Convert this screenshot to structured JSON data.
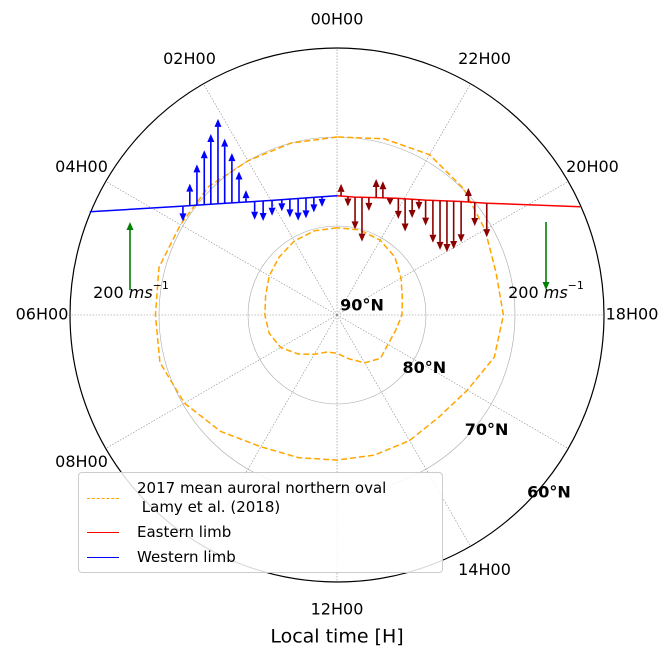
{
  "chart_data": {
    "type": "polar",
    "xlabel": "Local time [H]",
    "xlim": [
      0,
      24
    ],
    "xticks": [
      {
        "value": 0,
        "label": "00H00"
      },
      {
        "value": 2,
        "label": "02H00"
      },
      {
        "value": 4,
        "label": "04H00"
      },
      {
        "value": 6,
        "label": "06H00"
      },
      {
        "value": 8,
        "label": "08H00"
      },
      {
        "value": 10,
        "label": null
      },
      {
        "value": 12,
        "label": "12H00"
      },
      {
        "value": 14,
        "label": "14H00"
      },
      {
        "value": 16,
        "label": null
      },
      {
        "value": 18,
        "label": "18H00"
      },
      {
        "value": 20,
        "label": "20H00"
      },
      {
        "value": 22,
        "label": "22H00"
      }
    ],
    "ylim": [
      90,
      60
    ],
    "yticks": [
      {
        "value": 90,
        "label": "90°N"
      },
      {
        "value": 80,
        "label": "80°N"
      },
      {
        "value": 70,
        "label": "70°N"
      },
      {
        "value": 60,
        "label": "60°N"
      }
    ],
    "grid": true,
    "legend": "lower left",
    "reference": {
      "value": 200,
      "unit": "ms",
      "exponent": "−1",
      "color": "#008000"
    },
    "series": [
      {
        "name": "2017 mean auroral northern oval\n Lamy et al. (2018)",
        "color": "#ffa500",
        "style": "dashed",
        "x": [
          0,
          1,
          2,
          3,
          4,
          5,
          6,
          7,
          8,
          9,
          10,
          11,
          12,
          13,
          14,
          15,
          16,
          17,
          18,
          19,
          20,
          21,
          22,
          23,
          24,
          null,
          0,
          1,
          2,
          3,
          4,
          5,
          6,
          7,
          8,
          9,
          10,
          11,
          12,
          13,
          14,
          15,
          16,
          17,
          18,
          19,
          20,
          21,
          22,
          23,
          24
        ],
        "values": [
          70.0,
          70.0,
          70.0,
          69.6,
          69.7,
          69.3,
          69.6,
          69.4,
          70.2,
          71.5,
          72.9,
          73.4,
          73.7,
          73.7,
          73.7,
          73.8,
          73.1,
          71.7,
          71.3,
          71.5,
          70.8,
          69.9,
          69.2,
          69.5,
          70.0,
          null,
          80.2,
          80.2,
          80.4,
          80.8,
          81.2,
          81.7,
          81.9,
          82.1,
          82.7,
          83.8,
          84.9,
          85.7,
          85.7,
          84.9,
          83.8,
          83.1,
          83.4,
          83.2,
          82.7,
          82.4,
          81.7,
          80.8,
          80.3,
          80.1,
          80.2
        ]
      },
      {
        "name": "Eastern limb",
        "color": "#ff0000",
        "style": "solid",
        "x": [
          0,
          23.42,
          22.77,
          22.15,
          21.49,
          20.83,
          20.45,
          19.6
        ],
        "values": [
          76.6,
          76.6,
          76.1,
          75.2,
          73.7,
          71.1,
          69.0,
          60.1
        ],
        "arrows": {
          "color": "#8b0000",
          "local_time": [
            23.87,
            23.65,
            23.42,
            23.2,
            22.99,
            22.77,
            22.57,
            22.37,
            22.15,
            21.97,
            21.8,
            21.64,
            21.49,
            21.34,
            21.2,
            21.07,
            20.95,
            20.83,
            20.72,
            20.62,
            20.45
          ],
          "latitude": [
            76.6,
            76.6,
            76.6,
            76.5,
            76.3,
            76.1,
            75.9,
            75.6,
            75.2,
            74.9,
            74.5,
            74.1,
            73.7,
            73.2,
            72.7,
            72.2,
            71.7,
            71.1,
            70.5,
            70.0,
            69.0
          ],
          "velocity": [
            35,
            -30,
            -95,
            -130,
            -40,
            55,
            50,
            -20,
            -60,
            -95,
            -55,
            -30,
            -75,
            -125,
            -145,
            -150,
            -140,
            -120,
            40,
            -70,
            -100
          ]
        }
      },
      {
        "name": "Western limb",
        "color": "#0000ff",
        "style": "solid",
        "x": [
          4.49,
          3.65,
          3.13,
          2.59,
          1.97,
          1.23,
          0.48,
          0
        ],
        "values": [
          59.9,
          68.8,
          71.7,
          73.7,
          75.2,
          76.2,
          76.6,
          76.6
        ],
        "arrows": {
          "color": "#0000ff",
          "local_time": [
            3.65,
            3.56,
            3.46,
            3.35,
            3.24,
            3.13,
            3.01,
            2.87,
            2.73,
            2.59,
            2.39,
            2.19,
            1.97,
            1.7,
            1.47,
            1.23,
            0.99,
            0.74,
            0.48
          ],
          "latitude": [
            68.8,
            69.4,
            70.0,
            70.6,
            71.1,
            71.7,
            72.2,
            72.7,
            73.2,
            73.7,
            74.2,
            74.7,
            75.2,
            75.6,
            75.9,
            76.2,
            76.4,
            76.5,
            76.6
          ],
          "velocity": [
            -45,
            65,
            120,
            160,
            205,
            250,
            190,
            145,
            90,
            35,
            -55,
            -60,
            -45,
            -35,
            -55,
            -65,
            -60,
            -45,
            -30
          ]
        }
      }
    ]
  }
}
